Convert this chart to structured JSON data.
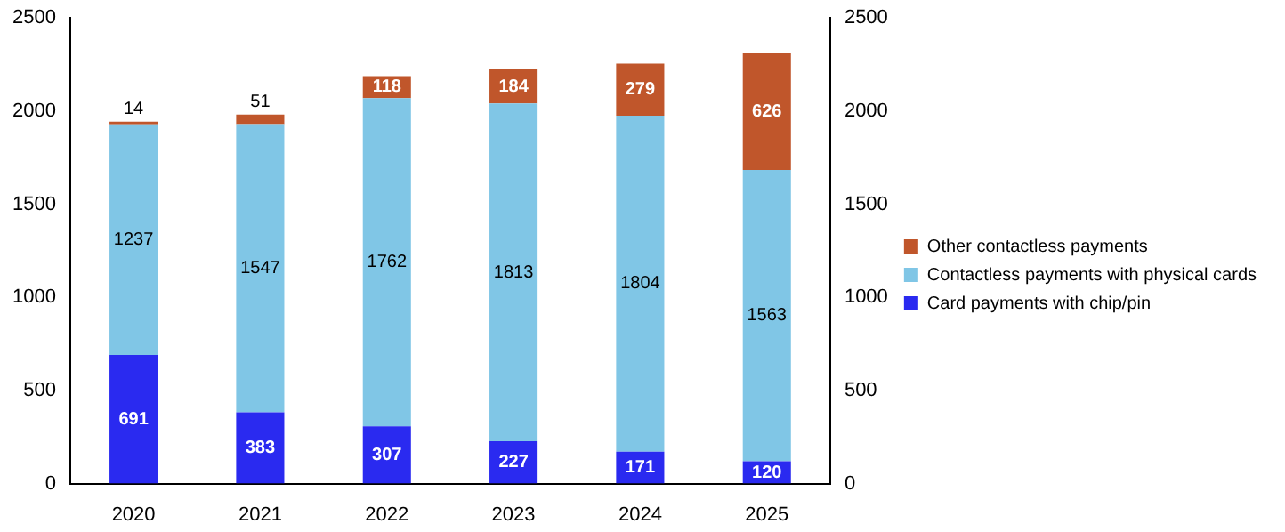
{
  "chart_data": {
    "type": "bar",
    "stacked": true,
    "categories": [
      "2020",
      "2021",
      "2022",
      "2023",
      "2024",
      "2025"
    ],
    "series": [
      {
        "name": "Card payments with chip/pin",
        "color": "#2a2af0",
        "values": [
          691,
          383,
          307,
          227,
          171,
          120
        ]
      },
      {
        "name": "Contactless payments with physical cards",
        "color": "#80c6e6",
        "values": [
          1237,
          1547,
          1762,
          1813,
          1804,
          1563
        ]
      },
      {
        "name": "Other contactless payments",
        "color": "#c0562b",
        "values": [
          14,
          51,
          118,
          184,
          279,
          626
        ]
      }
    ],
    "ylim": [
      0,
      2500
    ],
    "yticks": [
      0,
      500,
      1000,
      1500,
      2000,
      2500
    ],
    "y2lim": [
      0,
      2500
    ],
    "y2ticks": [
      0,
      500,
      1000,
      1500,
      2000,
      2500
    ],
    "data_labels": true,
    "legend": "right",
    "grid": false
  }
}
